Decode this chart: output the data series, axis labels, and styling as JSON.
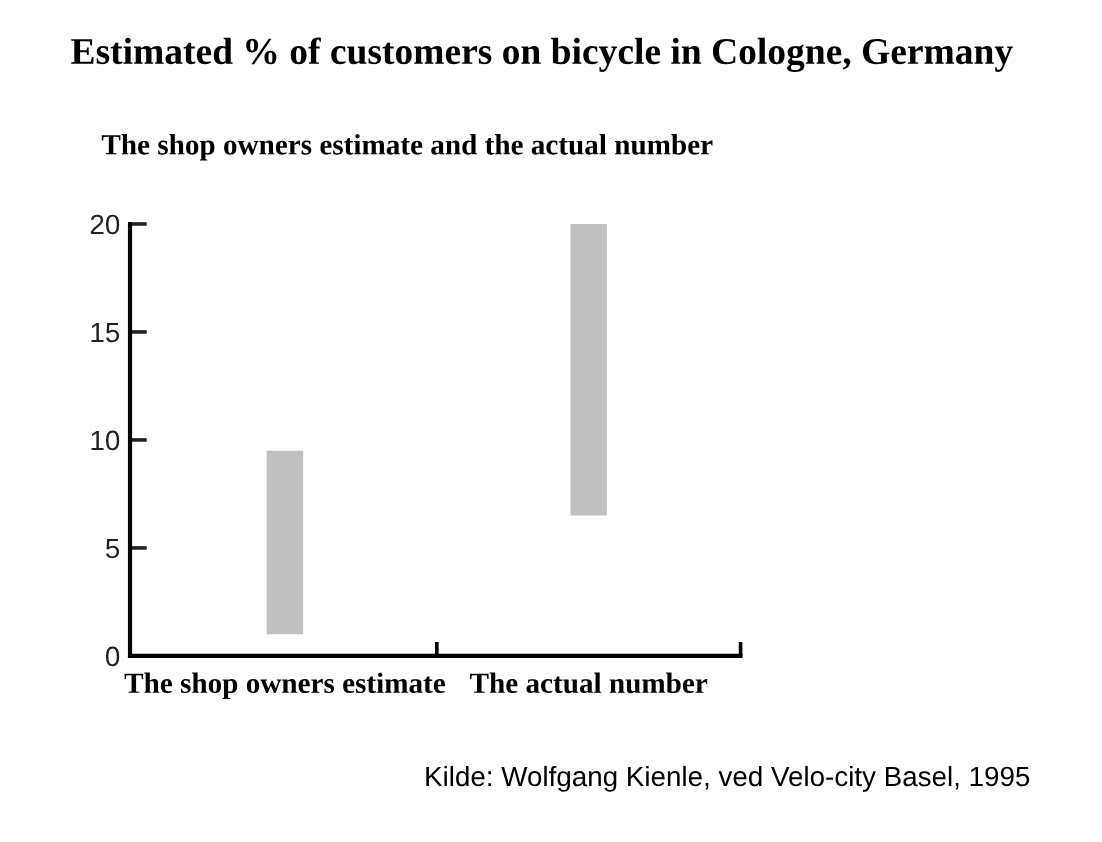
{
  "chart_data": {
    "type": "bar",
    "title": "Estimated % of customers on bicycle in Cologne, Germany",
    "subtitle": "The shop owners estimate and the actual number",
    "categories": [
      "The shop owners estimate",
      "The actual number"
    ],
    "base": [
      1,
      6.5
    ],
    "values": [
      8.5,
      13.5
    ],
    "color": "#c0c0c0",
    "ylim": [
      0,
      20
    ],
    "yticks": [
      0,
      5,
      10,
      15,
      20
    ],
    "grid": false,
    "legend": false,
    "annotations": [
      "Kilde: Wolfgang Kienle, ved Velo-city Basel, 1995"
    ]
  }
}
